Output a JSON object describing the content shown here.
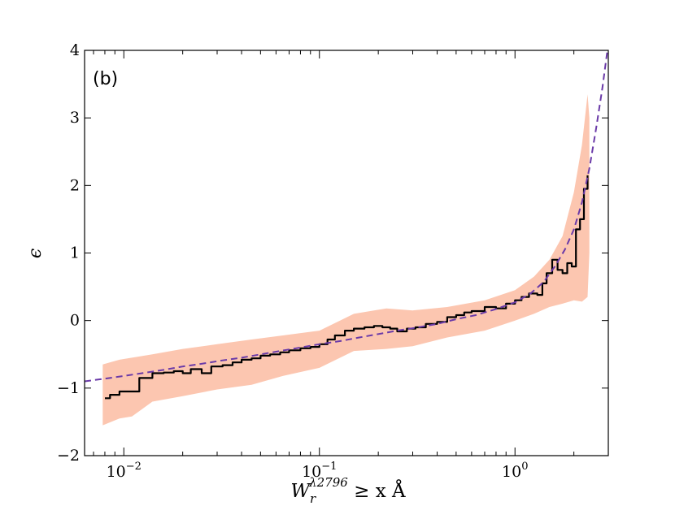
{
  "chart_data": {
    "type": "line",
    "panel_label": "(b)",
    "xlabel_parts": {
      "W": "W",
      "sub": "r",
      "sup": "λ2796",
      "rest": " ≥ x Å"
    },
    "ylabel": "ϵ",
    "xscale": "log",
    "xlim": [
      0.0063,
      3.0
    ],
    "ylim": [
      -2,
      4
    ],
    "x_ticks": [
      {
        "value": 0.01,
        "base": "10",
        "exp": "−2"
      },
      {
        "value": 0.1,
        "base": "10",
        "exp": "−1"
      },
      {
        "value": 1,
        "base": "10",
        "exp": "0"
      }
    ],
    "y_ticks": [
      {
        "value": -2,
        "label": "−2"
      },
      {
        "value": -1,
        "label": "−1"
      },
      {
        "value": 0,
        "label": "0"
      },
      {
        "value": 1,
        "label": "1"
      },
      {
        "value": 2,
        "label": "2"
      },
      {
        "value": 3,
        "label": "3"
      },
      {
        "value": 4,
        "label": "4"
      }
    ],
    "colors": {
      "measured": "#000000",
      "band": "#fcc6b0",
      "fit": "#6a3aa8"
    },
    "series": [
      {
        "kind": "measured",
        "x": [
          0.008,
          0.0085,
          0.0093,
          0.0095,
          0.011,
          0.012,
          0.014,
          0.016,
          0.018,
          0.02,
          0.022,
          0.025,
          0.028,
          0.032,
          0.036,
          0.04,
          0.045,
          0.05,
          0.056,
          0.063,
          0.07,
          0.08,
          0.09,
          0.1,
          0.11,
          0.12,
          0.135,
          0.15,
          0.17,
          0.19,
          0.21,
          0.23,
          0.25,
          0.28,
          0.31,
          0.35,
          0.4,
          0.45,
          0.5,
          0.55,
          0.6,
          0.7,
          0.8,
          0.9,
          1.0,
          1.08,
          1.18,
          1.3,
          1.38,
          1.45,
          1.55,
          1.65,
          1.75,
          1.85,
          1.95,
          2.05,
          2.15,
          2.25,
          2.35
        ],
        "y": [
          -1.15,
          -1.1,
          -1.1,
          -1.05,
          -1.05,
          -0.85,
          -0.78,
          -0.77,
          -0.75,
          -0.78,
          -0.72,
          -0.78,
          -0.68,
          -0.66,
          -0.62,
          -0.58,
          -0.56,
          -0.52,
          -0.5,
          -0.47,
          -0.44,
          -0.41,
          -0.39,
          -0.35,
          -0.28,
          -0.22,
          -0.15,
          -0.12,
          -0.1,
          -0.08,
          -0.1,
          -0.12,
          -0.16,
          -0.12,
          -0.1,
          -0.05,
          -0.02,
          0.05,
          0.08,
          0.12,
          0.14,
          0.2,
          0.18,
          0.25,
          0.3,
          0.35,
          0.4,
          0.38,
          0.55,
          0.7,
          0.9,
          0.75,
          0.7,
          0.85,
          0.8,
          1.35,
          1.5,
          1.95,
          2.15
        ]
      },
      {
        "kind": "band",
        "x": [
          0.0078,
          0.0095,
          0.011,
          0.014,
          0.02,
          0.03,
          0.045,
          0.065,
          0.1,
          0.15,
          0.22,
          0.3,
          0.45,
          0.7,
          1.0,
          1.25,
          1.5,
          1.75,
          2.0,
          2.2,
          2.35,
          2.4
        ],
        "upper": [
          -0.65,
          -0.58,
          -0.55,
          -0.5,
          -0.42,
          -0.35,
          -0.28,
          -0.22,
          -0.15,
          0.1,
          0.18,
          0.15,
          0.2,
          0.3,
          0.45,
          0.65,
          0.9,
          1.25,
          1.9,
          2.6,
          3.35,
          3.0
        ],
        "lower": [
          -1.55,
          -1.45,
          -1.42,
          -1.2,
          -1.12,
          -1.02,
          -0.95,
          -0.82,
          -0.7,
          -0.45,
          -0.42,
          -0.38,
          -0.25,
          -0.15,
          0.0,
          0.1,
          0.2,
          0.25,
          0.3,
          0.28,
          0.35,
          1.0
        ]
      },
      {
        "kind": "fit",
        "x": [
          0.0063,
          0.008,
          0.01,
          0.013,
          0.016,
          0.02,
          0.025,
          0.032,
          0.04,
          0.05,
          0.063,
          0.08,
          0.1,
          0.13,
          0.16,
          0.2,
          0.25,
          0.32,
          0.4,
          0.5,
          0.63,
          0.8,
          1.0,
          1.2,
          1.4,
          1.6,
          1.8,
          2.0,
          2.2,
          2.4,
          2.6,
          2.8,
          3.0
        ],
        "y": [
          -0.9,
          -0.86,
          -0.82,
          -0.77,
          -0.73,
          -0.68,
          -0.64,
          -0.59,
          -0.55,
          -0.5,
          -0.45,
          -0.4,
          -0.35,
          -0.3,
          -0.25,
          -0.2,
          -0.15,
          -0.1,
          -0.05,
          0.02,
          0.08,
          0.17,
          0.27,
          0.4,
          0.57,
          0.8,
          1.05,
          1.35,
          1.75,
          2.25,
          2.85,
          3.45,
          4.1
        ]
      }
    ]
  }
}
